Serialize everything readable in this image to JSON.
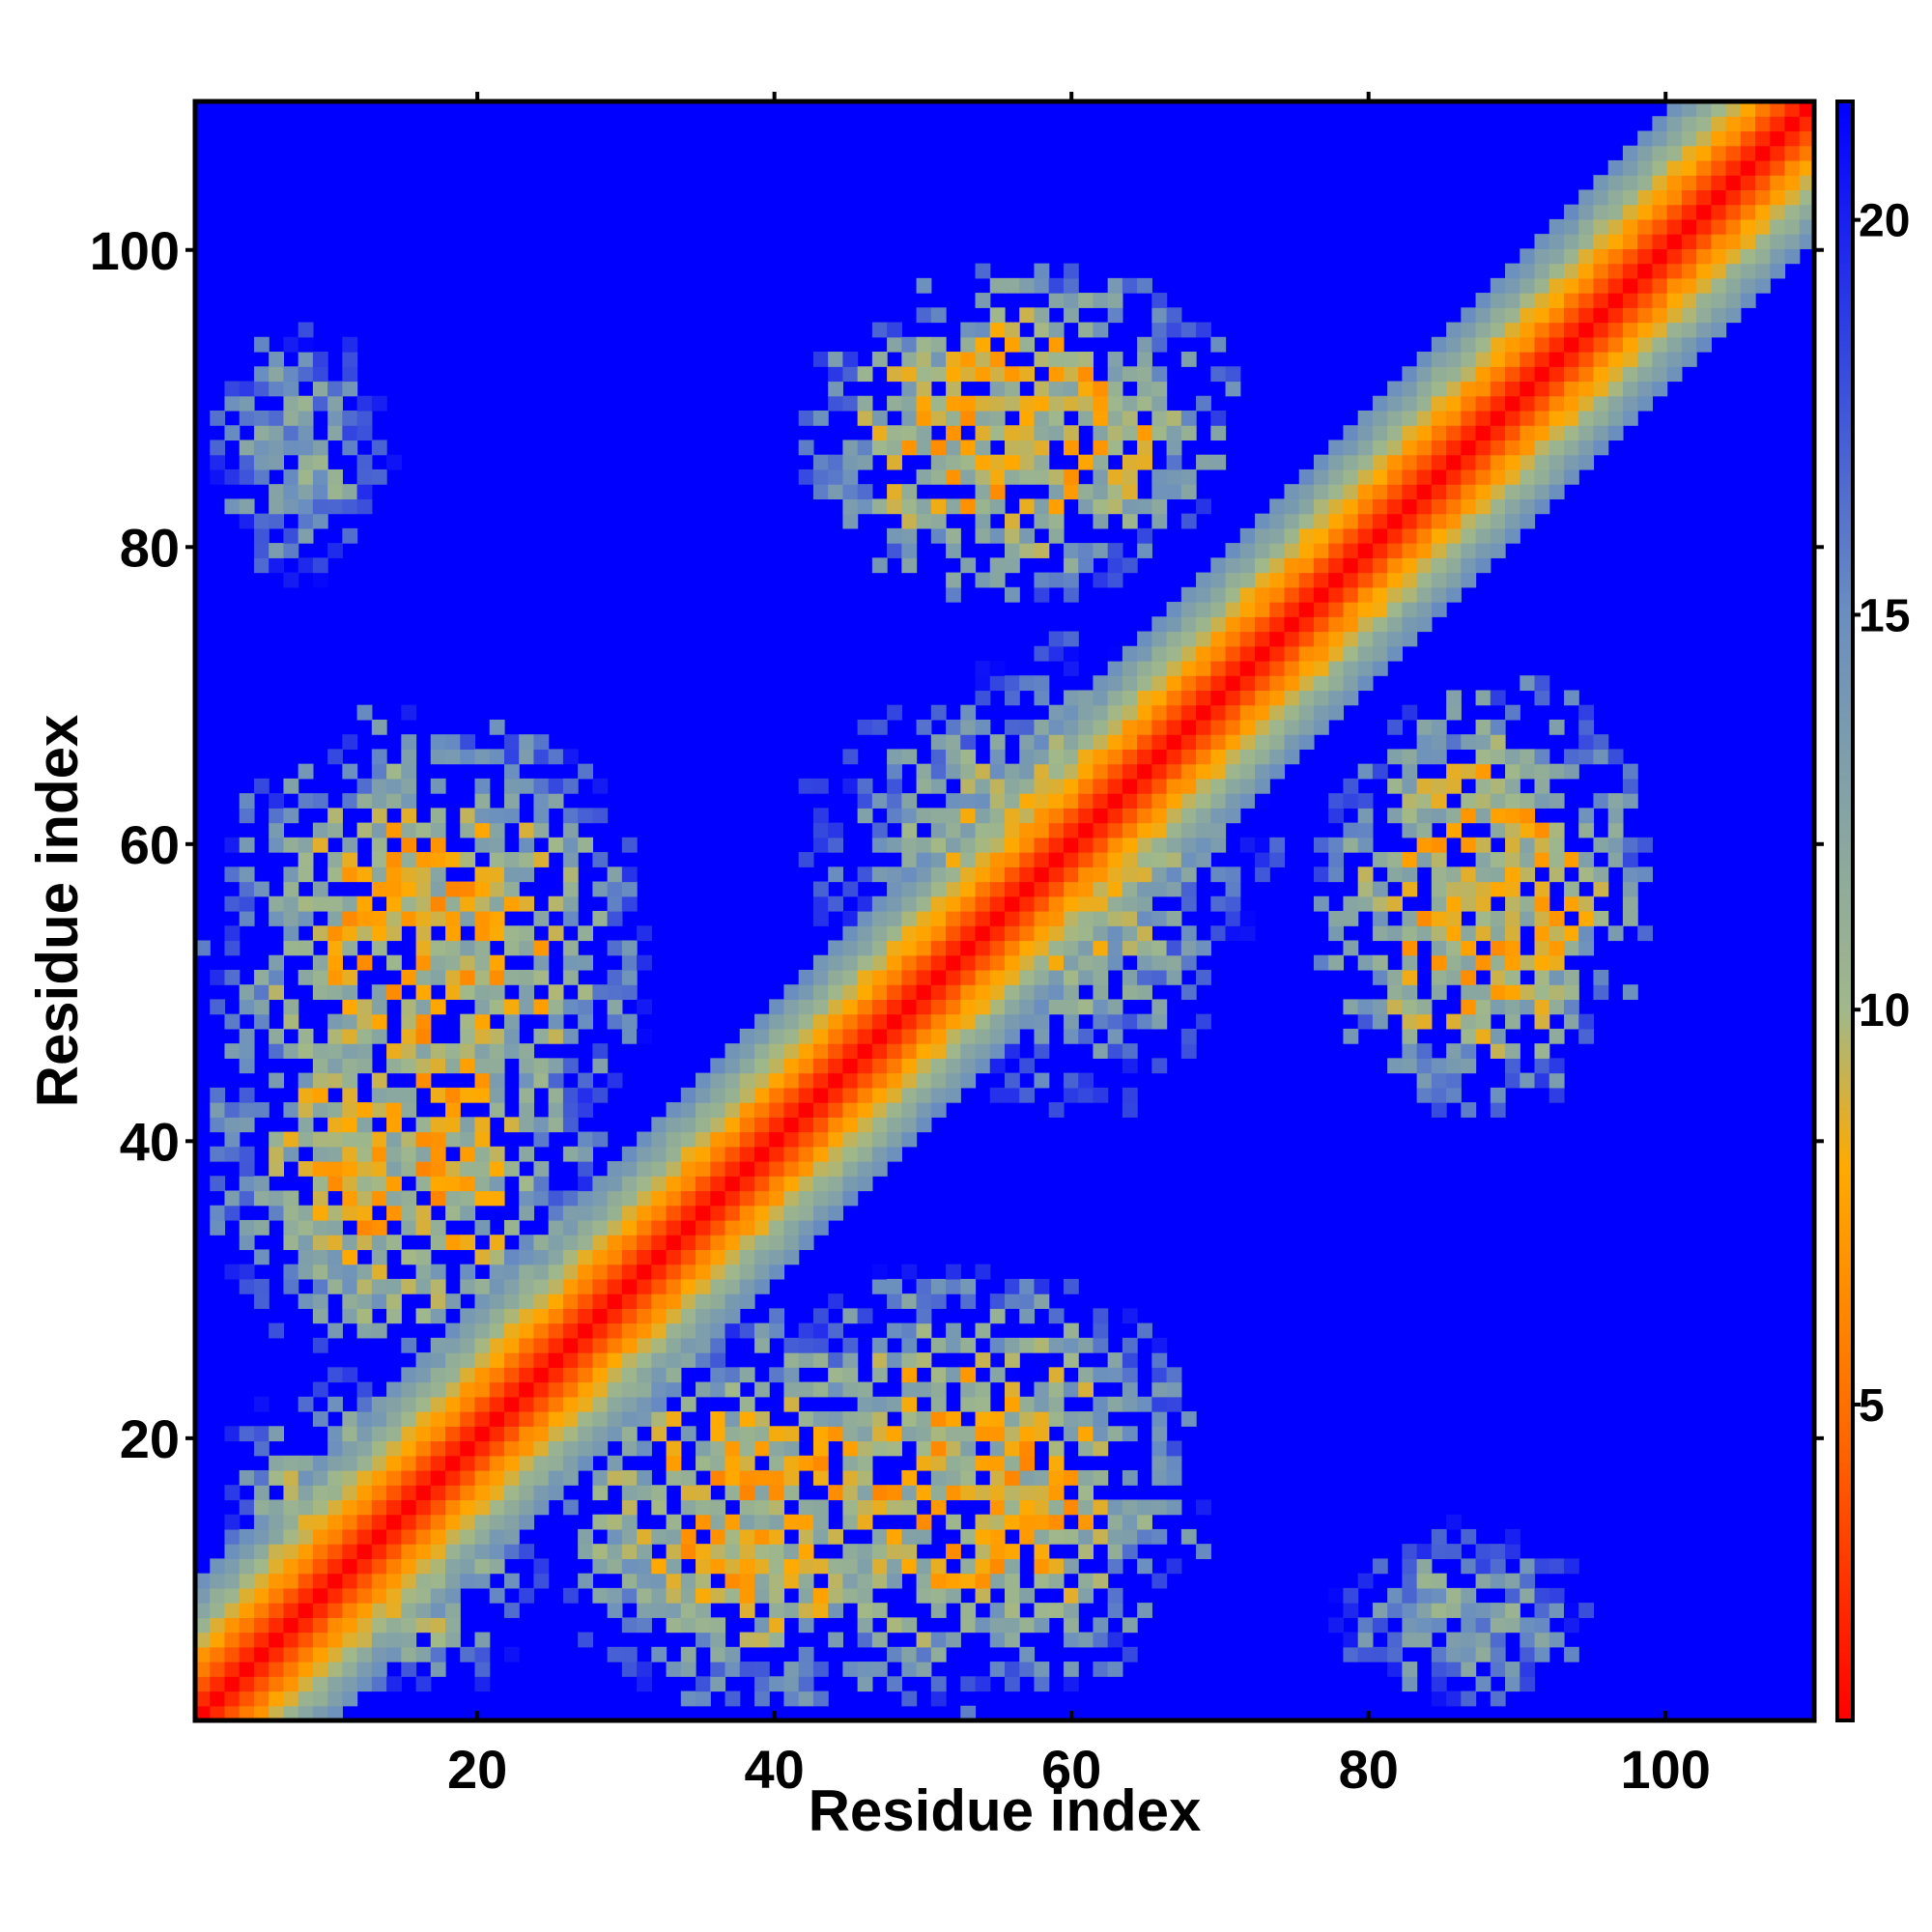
{
  "chart_data": {
    "type": "heatmap",
    "title": "",
    "xlabel": "Residue index",
    "ylabel": "Residue index",
    "n_residues": 110,
    "xlim": [
      1,
      110
    ],
    "ylim": [
      1,
      110
    ],
    "xticks": [
      20,
      40,
      60,
      80,
      100
    ],
    "yticks": [
      20,
      40,
      60,
      80,
      100
    ],
    "colorbar": {
      "range": [
        1,
        21.5
      ],
      "ticks": [
        5,
        10,
        15,
        20
      ],
      "colors": [
        "#ff0000",
        "#ff6600",
        "#ffaa00",
        "#a0b88a",
        "#6a8fbf",
        "#0000ff"
      ],
      "color_stops": [
        1,
        4.5,
        8,
        10,
        15,
        21.5
      ]
    },
    "grid": false,
    "legend": "colorbar-right",
    "diagonal_band": {
      "description_values": "distance grows with |i-j|",
      "near": 1,
      "far": 21.5
    },
    "contact_regions": [
      {
        "x_range": [
          1,
          14
        ],
        "y_range": [
          76,
          96
        ],
        "min_value": 10
      },
      {
        "x_range": [
          1,
          32
        ],
        "y_range": [
          36,
          70
        ],
        "min_value": 6
      },
      {
        "x_range": [
          1,
          20
        ],
        "y_range": [
          1,
          25
        ],
        "min_value": 8
      },
      {
        "x_range": [
          22,
          58
        ],
        "y_range": [
          1,
          28
        ],
        "min_value": 6
      },
      {
        "x_range": [
          41,
          75
        ],
        "y_range": [
          48,
          72
        ],
        "min_value": 8
      },
      {
        "x_range": [
          41,
          70
        ],
        "y_range": [
          76,
          99
        ],
        "min_value": 6
      },
      {
        "x_range": [
          78,
          100
        ],
        "y_range": [
          44,
          72
        ],
        "min_value": 6
      },
      {
        "x_range": [
          80,
          96
        ],
        "y_range": [
          1,
          13
        ],
        "min_value": 10
      }
    ]
  }
}
